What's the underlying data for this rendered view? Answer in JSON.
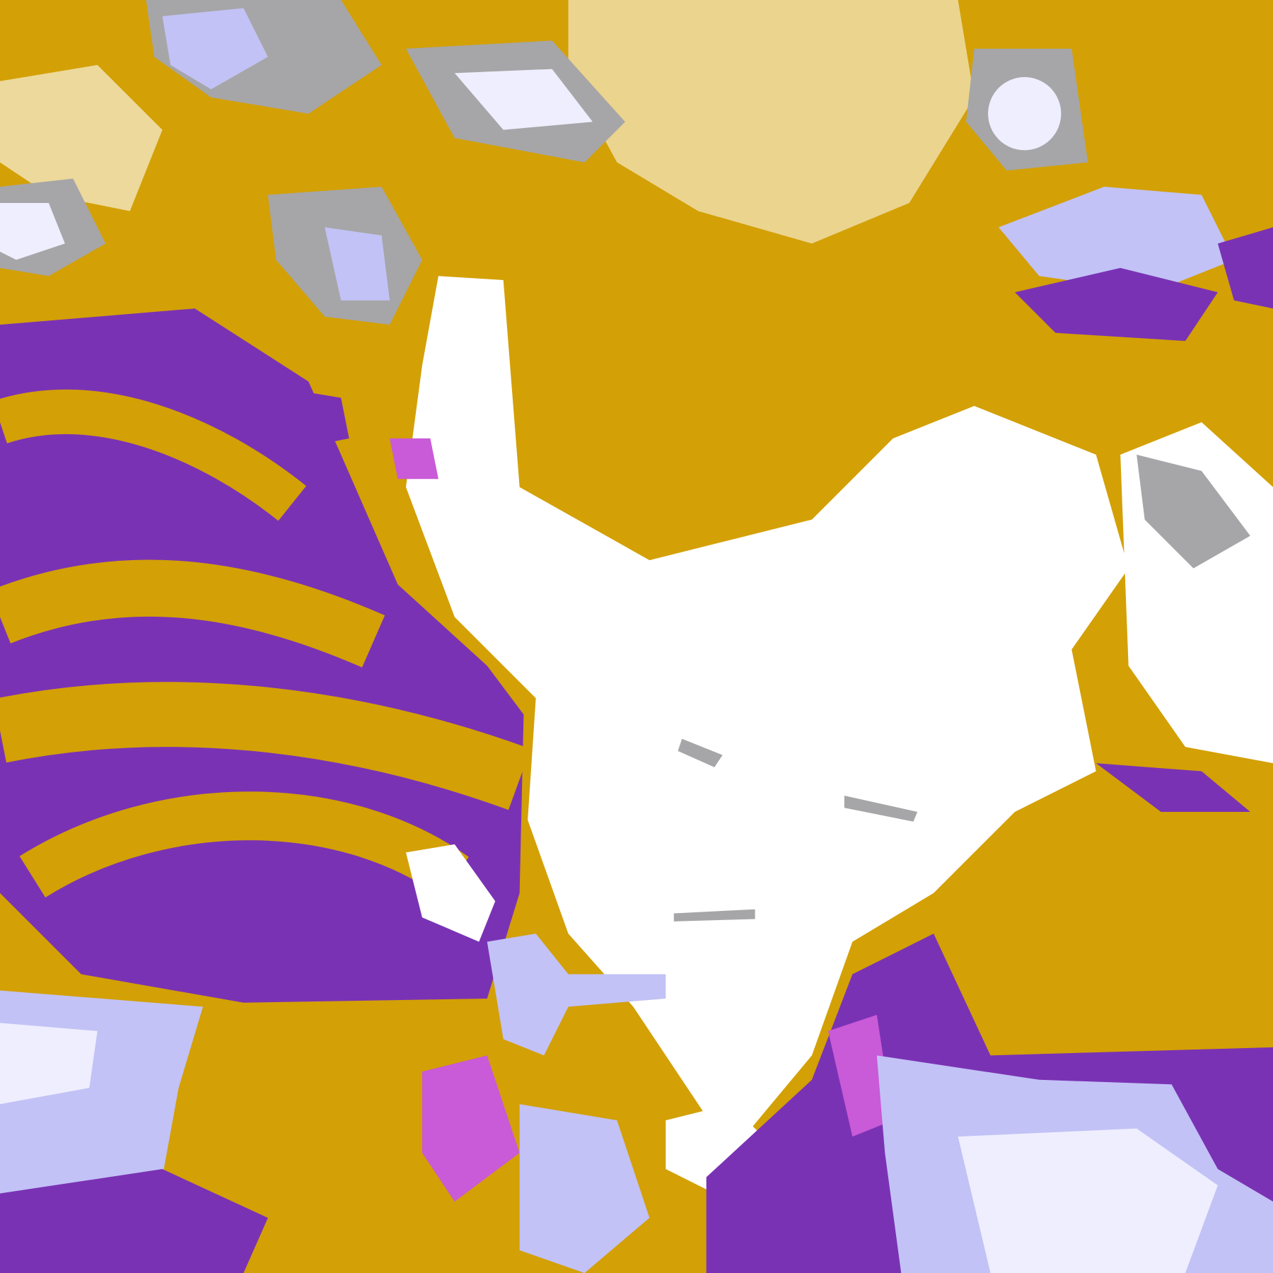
{
  "map": {
    "palette": {
      "clear": "#ffffff",
      "gold": "#d3a006",
      "purple": "#7a32b4",
      "magenta": "#c95ad8",
      "lavender": "#c2c2f6",
      "pale": "#eeeeff",
      "gray": "#a6a6a8"
    }
  }
}
